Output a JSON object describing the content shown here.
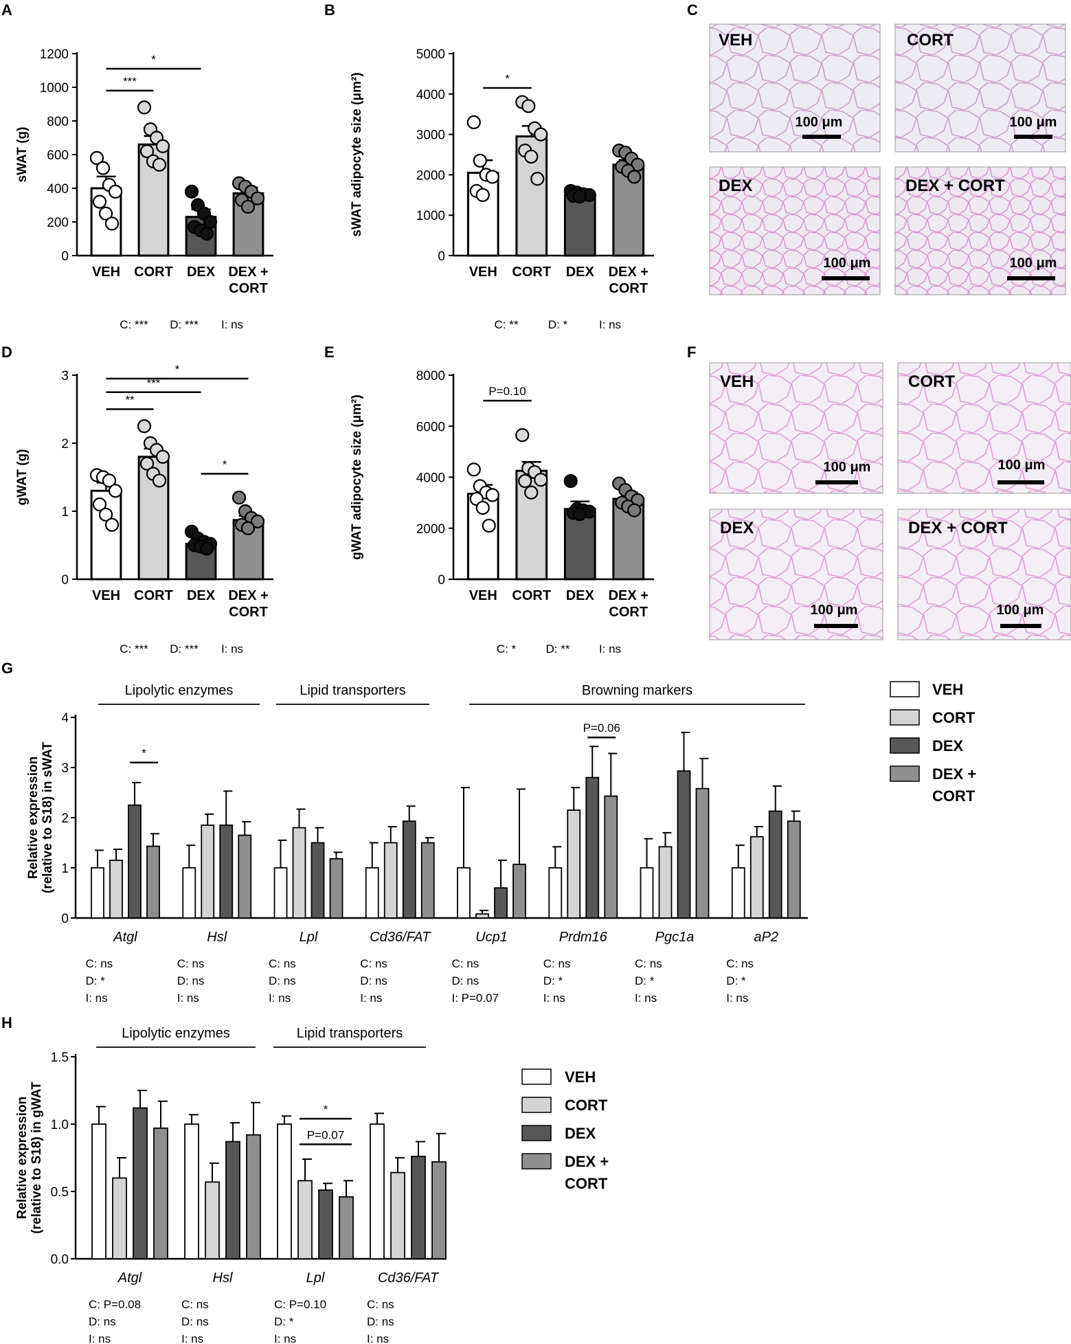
{
  "panels": {
    "A": "A",
    "B": "B",
    "C": "C",
    "D": "D",
    "E": "E",
    "F": "F",
    "G": "G",
    "H": "H"
  },
  "colors": {
    "VEH": "#ffffff",
    "CORT": "#d4d4d4",
    "DEX": "#575757",
    "DEX + CORT": "#8f8f8f"
  },
  "chart_data": [
    {
      "id": "A",
      "type": "bar",
      "categories": [
        "VEH",
        "CORT",
        "DEX",
        "DEX +\nCORT"
      ],
      "values": [
        400,
        660,
        230,
        370
      ],
      "errors": [
        70,
        50,
        45,
        35
      ],
      "points": [
        [
          580,
          520,
          420,
          380,
          320,
          250,
          190
        ],
        [
          880,
          750,
          700,
          650,
          620,
          560,
          540
        ],
        [
          380,
          300,
          250,
          200,
          170,
          150,
          130
        ],
        [
          430,
          410,
          380,
          340,
          330,
          290
        ]
      ],
      "ylabel": "sWAT (g)",
      "ylim": [
        0,
        1200
      ],
      "yticks": [
        0,
        200,
        400,
        600,
        800,
        1000,
        1200
      ],
      "sig": [
        {
          "from": 0,
          "to": 1,
          "y": 980,
          "label": "***"
        },
        {
          "from": 0,
          "to": 2,
          "y": 1110,
          "label": "*"
        }
      ],
      "stats": [
        "C: ***",
        "D: ***",
        "I: ns"
      ]
    },
    {
      "id": "B",
      "type": "bar",
      "categories": [
        "VEH",
        "CORT",
        "DEX",
        "DEX +\nCORT"
      ],
      "values": [
        2050,
        2950,
        1500,
        2250
      ],
      "errors": [
        310,
        260,
        60,
        120
      ],
      "points": [
        [
          3300,
          2350,
          2000,
          1950,
          1600,
          1500
        ],
        [
          3800,
          3700,
          3150,
          3000,
          2600,
          2450,
          1900
        ],
        [
          1600,
          1560,
          1520,
          1500,
          1480,
          1460
        ],
        [
          2600,
          2550,
          2400,
          2250,
          2200,
          2100,
          1950
        ]
      ],
      "ylabel": "sWAT adipocyte size (μm²)",
      "ylim": [
        0,
        5000
      ],
      "yticks": [
        0,
        1000,
        2000,
        3000,
        4000,
        5000
      ],
      "sig": [
        {
          "from": 0,
          "to": 1,
          "y": 4150,
          "label": "*"
        }
      ],
      "stats": [
        "C: **",
        "D: *",
        "I: ns"
      ]
    },
    {
      "id": "D",
      "type": "bar",
      "categories": [
        "VEH",
        "CORT",
        "DEX",
        "DEX +\nCORT"
      ],
      "values": [
        1.3,
        1.8,
        0.52,
        0.87
      ],
      "errors": [
        0.12,
        0.12,
        0.05,
        0.06
      ],
      "points": [
        [
          1.53,
          1.5,
          1.45,
          1.3,
          1.1,
          0.95,
          0.8
        ],
        [
          2.25,
          2.0,
          1.9,
          1.8,
          1.7,
          1.55,
          1.45
        ],
        [
          0.7,
          0.6,
          0.55,
          0.52,
          0.5,
          0.48,
          0.45
        ],
        [
          1.2,
          1.0,
          0.9,
          0.85,
          0.8,
          0.75
        ]
      ],
      "ylabel": "gWAT (g)",
      "ylim": [
        0,
        3
      ],
      "yticks": [
        0,
        1,
        2,
        3
      ],
      "sig": [
        {
          "from": 0,
          "to": 1,
          "y": 2.5,
          "label": "**"
        },
        {
          "from": 0,
          "to": 2,
          "y": 2.75,
          "label": "***"
        },
        {
          "from": 0,
          "to": 3,
          "y": 2.95,
          "label": "*"
        },
        {
          "from": 2,
          "to": 3,
          "y": 1.55,
          "label": "*"
        }
      ],
      "stats": [
        "C: ***",
        "D: ***",
        "I: ns"
      ]
    },
    {
      "id": "E",
      "type": "bar",
      "categories": [
        "VEH",
        "CORT",
        "DEX",
        "DEX +\nCORT"
      ],
      "values": [
        3350,
        4250,
        2750,
        3150
      ],
      "errors": [
        350,
        350,
        300,
        250
      ],
      "points": [
        [
          4300,
          3650,
          3400,
          3300,
          3150,
          2800,
          2100
        ],
        [
          5650,
          4350,
          4200,
          3900,
          3850,
          3400
        ],
        [
          3850,
          2750,
          2700,
          2650,
          2600,
          2550
        ],
        [
          3750,
          3500,
          3250,
          3100,
          3000,
          2850,
          2700
        ]
      ],
      "ylabel": "gWAT adipocyte size (μm²)",
      "ylim": [
        0,
        8000
      ],
      "yticks": [
        0,
        2000,
        4000,
        6000,
        8000
      ],
      "sig": [
        {
          "from": 0,
          "to": 1,
          "y": 7000,
          "label": "P=0.10"
        }
      ],
      "stats": [
        "C: *",
        "D: **",
        "I: ns"
      ]
    },
    {
      "id": "G",
      "type": "bar",
      "series": [
        {
          "name": "VEH",
          "values": [
            1.0,
            1.0,
            1.0,
            1.0,
            1.0,
            1.0,
            1.0,
            1.0
          ],
          "errors": [
            0.35,
            0.45,
            0.55,
            0.5,
            1.6,
            0.42,
            0.58,
            0.45
          ]
        },
        {
          "name": "CORT",
          "values": [
            1.15,
            1.85,
            1.8,
            1.5,
            0.08,
            2.15,
            1.42,
            1.62
          ],
          "errors": [
            0.22,
            0.22,
            0.37,
            0.32,
            0.07,
            0.45,
            0.28,
            0.2
          ]
        },
        {
          "name": "DEX",
          "values": [
            2.25,
            1.85,
            1.5,
            1.93,
            0.6,
            2.8,
            2.93,
            2.13
          ],
          "errors": [
            0.45,
            0.68,
            0.3,
            0.3,
            0.55,
            0.62,
            0.77,
            0.5
          ]
        },
        {
          "name": "DEX + CORT",
          "values": [
            1.43,
            1.65,
            1.18,
            1.5,
            1.07,
            2.43,
            2.58,
            1.93
          ],
          "errors": [
            0.25,
            0.27,
            0.13,
            0.1,
            1.5,
            0.85,
            0.6,
            0.2
          ]
        }
      ],
      "categories": [
        "Atgl",
        "Hsl",
        "Lpl",
        "Cd36/FAT",
        "Ucp1",
        "Prdm16",
        "Pgc1a",
        "aP2"
      ],
      "ylabel1": "Relative expression",
      "ylabel2": "(relative to S18) in sWAT",
      "ylim": [
        0,
        4
      ],
      "yticks": [
        0,
        1,
        2,
        3,
        4
      ],
      "groups": [
        "Lipolytic enzymes",
        "Lipid transporters",
        "Browning markers"
      ],
      "sig": [
        {
          "cat": 0,
          "s1": 2,
          "s2": 3,
          "y": 3.1,
          "label": "*"
        },
        {
          "cat": 5,
          "s1": 2,
          "s2": 3,
          "y": 3.6,
          "label": "P=0.06"
        }
      ],
      "stats": [
        [
          "C: ns",
          "D: *",
          "I: ns"
        ],
        [
          "C: ns",
          "D: ns",
          "I: ns"
        ],
        [
          "C: ns",
          "D: ns",
          "I: ns"
        ],
        [
          "C: ns",
          "D: ns",
          "I: ns"
        ],
        [
          "C: ns",
          "D: ns",
          "I: P=0.07"
        ],
        [
          "C: ns",
          "D: *",
          "I: ns"
        ],
        [
          "C: ns",
          "D: *",
          "I: ns"
        ],
        [
          "C: ns",
          "D: *",
          "I: ns"
        ]
      ]
    },
    {
      "id": "H",
      "type": "bar",
      "series": [
        {
          "name": "VEH",
          "values": [
            1.0,
            1.0,
            1.0,
            1.0
          ],
          "errors": [
            0.13,
            0.07,
            0.06,
            0.08
          ]
        },
        {
          "name": "CORT",
          "values": [
            0.6,
            0.57,
            0.58,
            0.64
          ],
          "errors": [
            0.15,
            0.14,
            0.16,
            0.11
          ]
        },
        {
          "name": "DEX",
          "values": [
            1.12,
            0.87,
            0.51,
            0.76
          ],
          "errors": [
            0.13,
            0.14,
            0.05,
            0.11
          ]
        },
        {
          "name": "DEX + CORT",
          "values": [
            0.97,
            0.92,
            0.46,
            0.72
          ],
          "errors": [
            0.2,
            0.24,
            0.12,
            0.21
          ]
        }
      ],
      "categories": [
        "Atgl",
        "Hsl",
        "Lpl",
        "Cd36/FAT"
      ],
      "ylabel1": "Relative expression",
      "ylabel2": "(relative to S18) in gWAT",
      "ylim": [
        0,
        1.5
      ],
      "yticks": [
        0.0,
        0.5,
        1.0,
        1.5
      ],
      "yticklabels": [
        "0.0",
        "0.5",
        "1.0",
        "1.5"
      ],
      "groups": [
        "Lipolytic enzymes",
        "Lipid transporters"
      ],
      "sig": [
        {
          "cat": 2,
          "s1": 1,
          "s2": 3,
          "y": 0.85,
          "label": "P=0.07"
        },
        {
          "cat": 2,
          "s1": 1,
          "s2": 3,
          "y": 1.04,
          "label": "*"
        }
      ],
      "stats": [
        [
          "C: P=0.08",
          "D: ns",
          "I: ns"
        ],
        [
          "C: ns",
          "D: ns",
          "I: ns"
        ],
        [
          "C: P=0.10",
          "D: *",
          "I: ns"
        ],
        [
          "C: ns",
          "D: ns",
          "I: ns"
        ]
      ]
    }
  ],
  "histology": {
    "C": [
      "VEH",
      "CORT",
      "DEX",
      "DEX + CORT"
    ],
    "F": [
      "VEH",
      "CORT",
      "DEX",
      "DEX + CORT"
    ],
    "scale_label": "100 μm"
  },
  "legend": {
    "items": [
      "VEH",
      "CORT",
      "DEX",
      "DEX +",
      "CORT"
    ]
  }
}
